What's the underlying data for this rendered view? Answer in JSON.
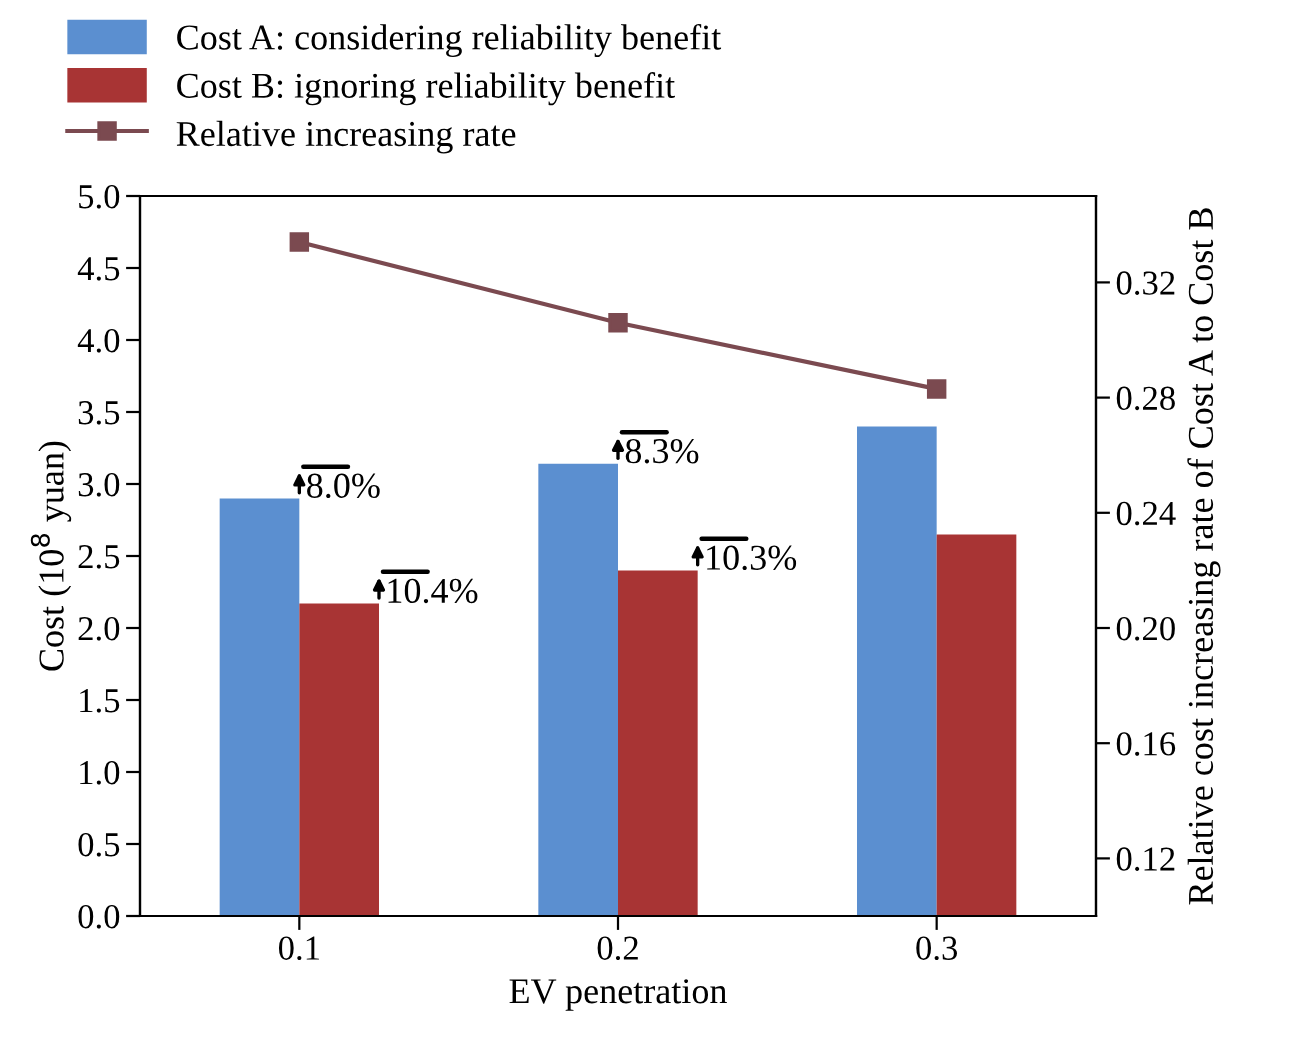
{
  "chart_data": {
    "type": "bar",
    "xlabel": "EV penetration",
    "ylabel": "Cost (10$^{8}$ yuan)",
    "y2label": "Relative cost increasing rate of Cost A to Cost B",
    "categories": [
      "0.1",
      "0.2",
      "0.3"
    ],
    "series": [
      {
        "name": "Cost A: considering reliability benefit",
        "color": "#5b8fd0",
        "values": [
          2.9,
          3.14,
          3.4
        ]
      },
      {
        "name": "Cost B: ignoring reliability benefit",
        "color": "#a83434",
        "values": [
          2.17,
          2.4,
          2.65
        ]
      },
      {
        "name": "Relative increasing rate",
        "type": "line",
        "axis": "y2",
        "color": "#7b4a50",
        "marker": "square",
        "values": [
          0.334,
          0.306,
          0.283
        ]
      }
    ],
    "ylim": [
      0,
      5
    ],
    "yticks": [
      {
        "value": 0,
        "label": "0.0"
      },
      0.5,
      {
        "value": 1,
        "label": "1.0"
      },
      1.5,
      {
        "value": 2,
        "label": "2.0"
      },
      2.5,
      {
        "value": 3,
        "label": "3.0"
      },
      3.5,
      {
        "value": 4,
        "label": "4.0"
      },
      4.5,
      {
        "value": 5,
        "label": "5.0"
      }
    ],
    "y2lim": [
      0.1,
      0.35
    ],
    "y2ticks": [
      0.12,
      0.16,
      {
        "value": 0.2,
        "label": "0.20"
      },
      0.24,
      0.28,
      0.32
    ],
    "annotations": [
      {
        "text": "8.0%",
        "x": "0.1",
        "y": 2.9
      },
      {
        "text": "10.4%",
        "x": "0.1",
        "y": 2.17
      },
      {
        "text": "8.3%",
        "x": "0.2",
        "y": 3.14
      },
      {
        "text": "10.3%",
        "x": "0.2",
        "y": 2.4
      }
    ],
    "legend": "top",
    "grid": false
  }
}
